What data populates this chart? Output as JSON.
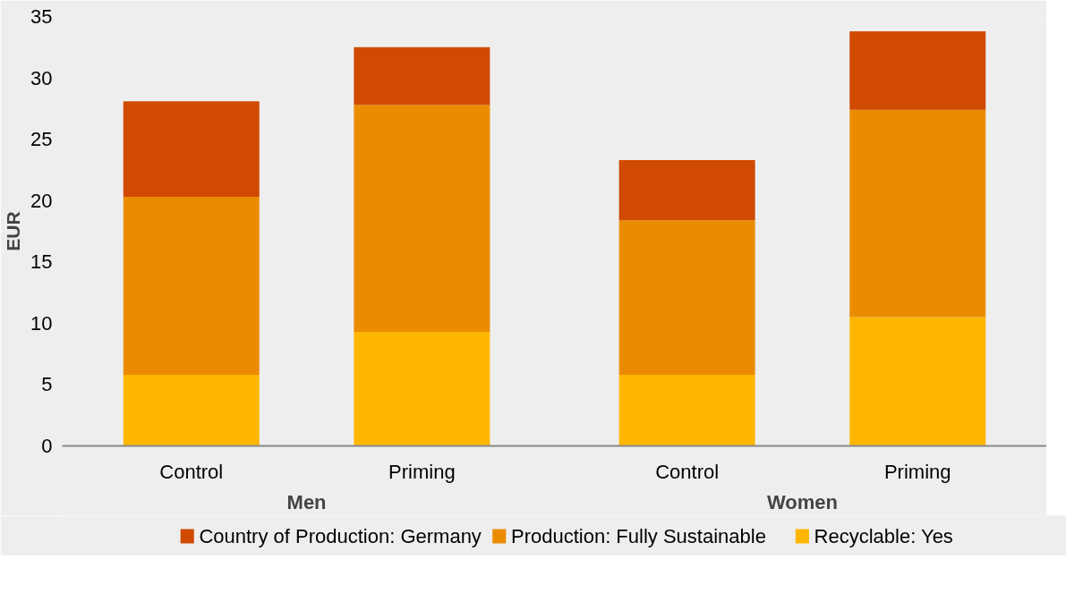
{
  "chart_data": {
    "type": "bar",
    "stacked": true,
    "ylabel": "EUR",
    "categories": [
      "Control",
      "Priming",
      "Control",
      "Priming"
    ],
    "annotations": [
      "Men",
      "Women"
    ],
    "series": [
      {
        "name": "Recyclable: Yes",
        "color": "#ffb600",
        "values": [
          5.8,
          9.3,
          5.8,
          10.5
        ]
      },
      {
        "name": "Production: Fully Sustainable",
        "color": "#eb8c00",
        "values": [
          14.5,
          18.5,
          12.6,
          16.9
        ]
      },
      {
        "name": "Country of Production: Germany",
        "color": "#d04a02",
        "values": [
          7.8,
          4.7,
          4.9,
          6.4
        ]
      }
    ],
    "ylim": [
      0,
      35
    ],
    "yticks": [
      0,
      5,
      10,
      15,
      20,
      25,
      30,
      35
    ],
    "grid": false,
    "legend": "bottom"
  }
}
